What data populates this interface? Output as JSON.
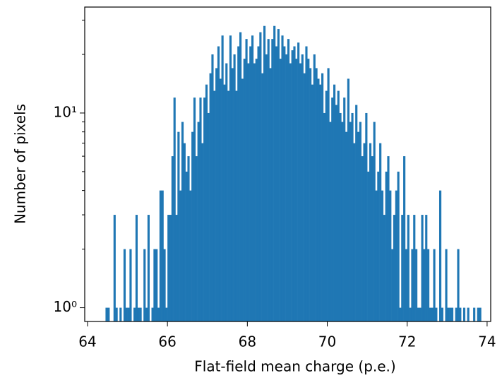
{
  "chart_data": {
    "type": "histogram",
    "xlabel": "Flat-field mean charge (p.e.)",
    "ylabel": "Number of pixels",
    "color": "#1f77b4",
    "log_y": true,
    "bins": [
      64.4,
      64.45,
      64.5,
      64.55,
      64.6,
      64.65,
      64.7,
      64.75,
      64.8,
      64.85,
      64.9,
      64.95,
      65,
      65.05,
      65.1,
      65.15,
      65.2,
      65.25,
      65.3,
      65.35,
      65.4,
      65.45,
      65.5,
      65.55,
      65.6,
      65.65,
      65.7,
      65.75,
      65.8,
      65.85,
      65.9,
      65.95,
      66,
      66.05,
      66.1,
      66.15,
      66.2,
      66.25,
      66.3,
      66.35,
      66.4,
      66.45,
      66.5,
      66.55,
      66.6,
      66.65,
      66.7,
      66.75,
      66.8,
      66.85,
      66.9,
      66.95,
      67,
      67.05,
      67.1,
      67.15,
      67.2,
      67.25,
      67.3,
      67.35,
      67.4,
      67.45,
      67.5,
      67.55,
      67.6,
      67.65,
      67.7,
      67.75,
      67.8,
      67.85,
      67.9,
      67.95,
      68,
      68.05,
      68.1,
      68.15,
      68.2,
      68.25,
      68.3,
      68.35,
      68.4,
      68.45,
      68.5,
      68.55,
      68.6,
      68.65,
      68.7,
      68.75,
      68.8,
      68.85,
      68.9,
      68.95,
      69,
      69.05,
      69.1,
      69.15,
      69.2,
      69.25,
      69.3,
      69.35,
      69.4,
      69.45,
      69.5,
      69.55,
      69.6,
      69.65,
      69.7,
      69.75,
      69.8,
      69.85,
      69.9,
      69.95,
      70,
      70.05,
      70.1,
      70.15,
      70.2,
      70.25,
      70.3,
      70.35,
      70.4,
      70.45,
      70.5,
      70.55,
      70.6,
      70.65,
      70.7,
      70.75,
      70.8,
      70.85,
      70.9,
      70.95,
      71,
      71.05,
      71.1,
      71.15,
      71.2,
      71.25,
      71.3,
      71.35,
      71.4,
      71.45,
      71.5,
      71.55,
      71.6,
      71.65,
      71.7,
      71.75,
      71.8,
      71.85,
      71.9,
      71.95,
      72,
      72.05,
      72.1,
      72.15,
      72.2,
      72.25,
      72.3,
      72.35,
      72.4,
      72.45,
      72.5,
      72.55,
      72.6,
      72.65,
      72.7,
      72.75,
      72.8,
      72.85,
      72.9,
      72.95,
      73,
      73.05,
      73.1,
      73.15,
      73.2,
      73.25,
      73.3,
      73.35,
      73.4,
      73.45,
      73.5,
      73.55,
      73.6,
      73.65,
      73.7,
      73.75,
      73.8,
      73.85,
      73.9,
      73.95,
      74
    ],
    "values": [
      0,
      1,
      1,
      0,
      0,
      3,
      1,
      0,
      1,
      0,
      2,
      1,
      1,
      2,
      0,
      1,
      3,
      1,
      1,
      0,
      2,
      1,
      3,
      0,
      1,
      2,
      2,
      1,
      4,
      4,
      2,
      1,
      3,
      3,
      6,
      12,
      3,
      8,
      4,
      9,
      7,
      5,
      6,
      4,
      8,
      12,
      6,
      9,
      12,
      7,
      12,
      14,
      10,
      16,
      20,
      13,
      17,
      22,
      15,
      25,
      14,
      18,
      13,
      25,
      17,
      20,
      13,
      22,
      26,
      15,
      19,
      24,
      18,
      22,
      25,
      18,
      19,
      22,
      26,
      16,
      28,
      20,
      24,
      17,
      24,
      28,
      22,
      27,
      19,
      25,
      22,
      20,
      24,
      18,
      21,
      22,
      19,
      23,
      18,
      20,
      16,
      22,
      19,
      17,
      14,
      20,
      17,
      15,
      14,
      16,
      10,
      13,
      17,
      9,
      12,
      14,
      11,
      13,
      10,
      9,
      12,
      8,
      15,
      9,
      10,
      7,
      11,
      8,
      9,
      6,
      7,
      10,
      5,
      7,
      6,
      9,
      4,
      5,
      7,
      4,
      3,
      5,
      6,
      4,
      2,
      3,
      4,
      5,
      1,
      3,
      6,
      2,
      3,
      1,
      2,
      3,
      2,
      1,
      1,
      3,
      2,
      3,
      2,
      1,
      1,
      2,
      1,
      0,
      4,
      1,
      0,
      2,
      1,
      1,
      1,
      0,
      1,
      2,
      1,
      0,
      1,
      0,
      1,
      0,
      0,
      1,
      0,
      1,
      1,
      0,
      0,
      0
    ],
    "xlim": [
      63.93,
      74.09
    ],
    "xticks": [
      64,
      66,
      68,
      70,
      72,
      74
    ],
    "ylim": [
      0.85,
      35
    ],
    "yticks": [
      {
        "value": 1,
        "label": "10⁰"
      },
      {
        "value": 10,
        "label": "10¹"
      }
    ],
    "yminorticks": [
      2,
      3,
      4,
      5,
      6,
      7,
      8,
      9,
      20,
      30
    ]
  }
}
